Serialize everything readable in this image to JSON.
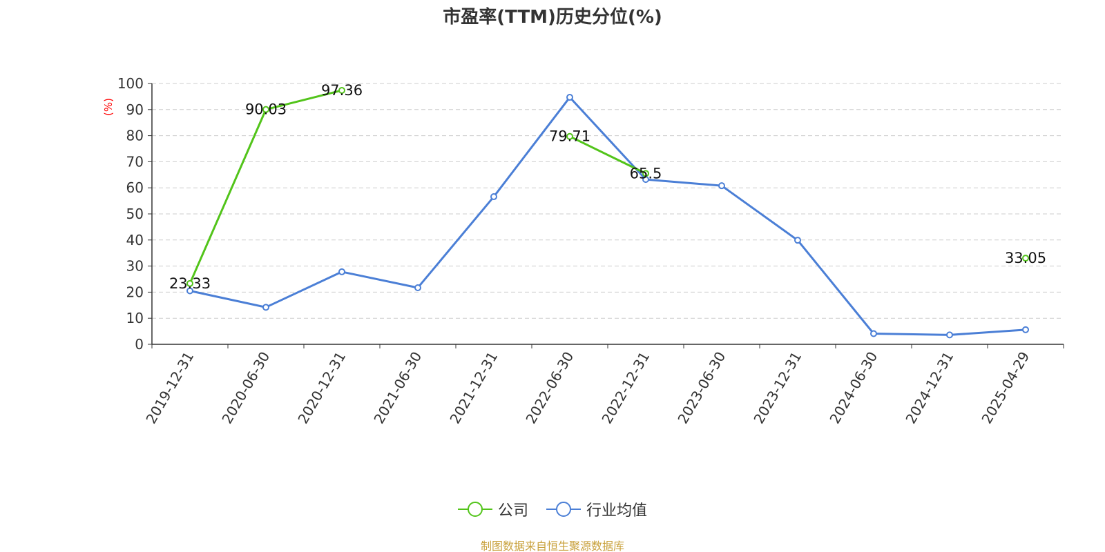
{
  "chart_data": {
    "type": "line",
    "title": "市盈率(TTM)历史分位(%)",
    "ylabel": "(%)",
    "xlabel": "",
    "ylim": [
      0,
      100
    ],
    "yticks": [
      0,
      10,
      20,
      30,
      40,
      50,
      60,
      70,
      80,
      90,
      100
    ],
    "grid": true,
    "legend_position": "bottom-center",
    "categories": [
      "2019-12-31",
      "2020-06-30",
      "2020-12-31",
      "2021-06-30",
      "2021-12-31",
      "2022-06-30",
      "2022-12-31",
      "2023-06-30",
      "2023-12-31",
      "2024-06-30",
      "2024-12-31",
      "2025-04-29"
    ],
    "series": [
      {
        "name": "公司",
        "color": "#52c41a",
        "show_labels": true,
        "values": [
          23.33,
          90.03,
          97.36,
          null,
          null,
          79.71,
          65.5,
          null,
          null,
          null,
          null,
          33.05
        ]
      },
      {
        "name": "行业均值",
        "color": "#4b7fd6",
        "show_labels": false,
        "values": [
          20.5,
          14.2,
          27.8,
          21.7,
          56.6,
          94.7,
          63.2,
          60.8,
          39.9,
          4.1,
          3.6,
          5.6
        ]
      }
    ]
  },
  "source_note": "制图数据来自恒生聚源数据库",
  "source_color": "#c8a03a",
  "axis_color": "#333333",
  "grid_color": "#cccccc",
  "ylabel_color": "#ff0000"
}
